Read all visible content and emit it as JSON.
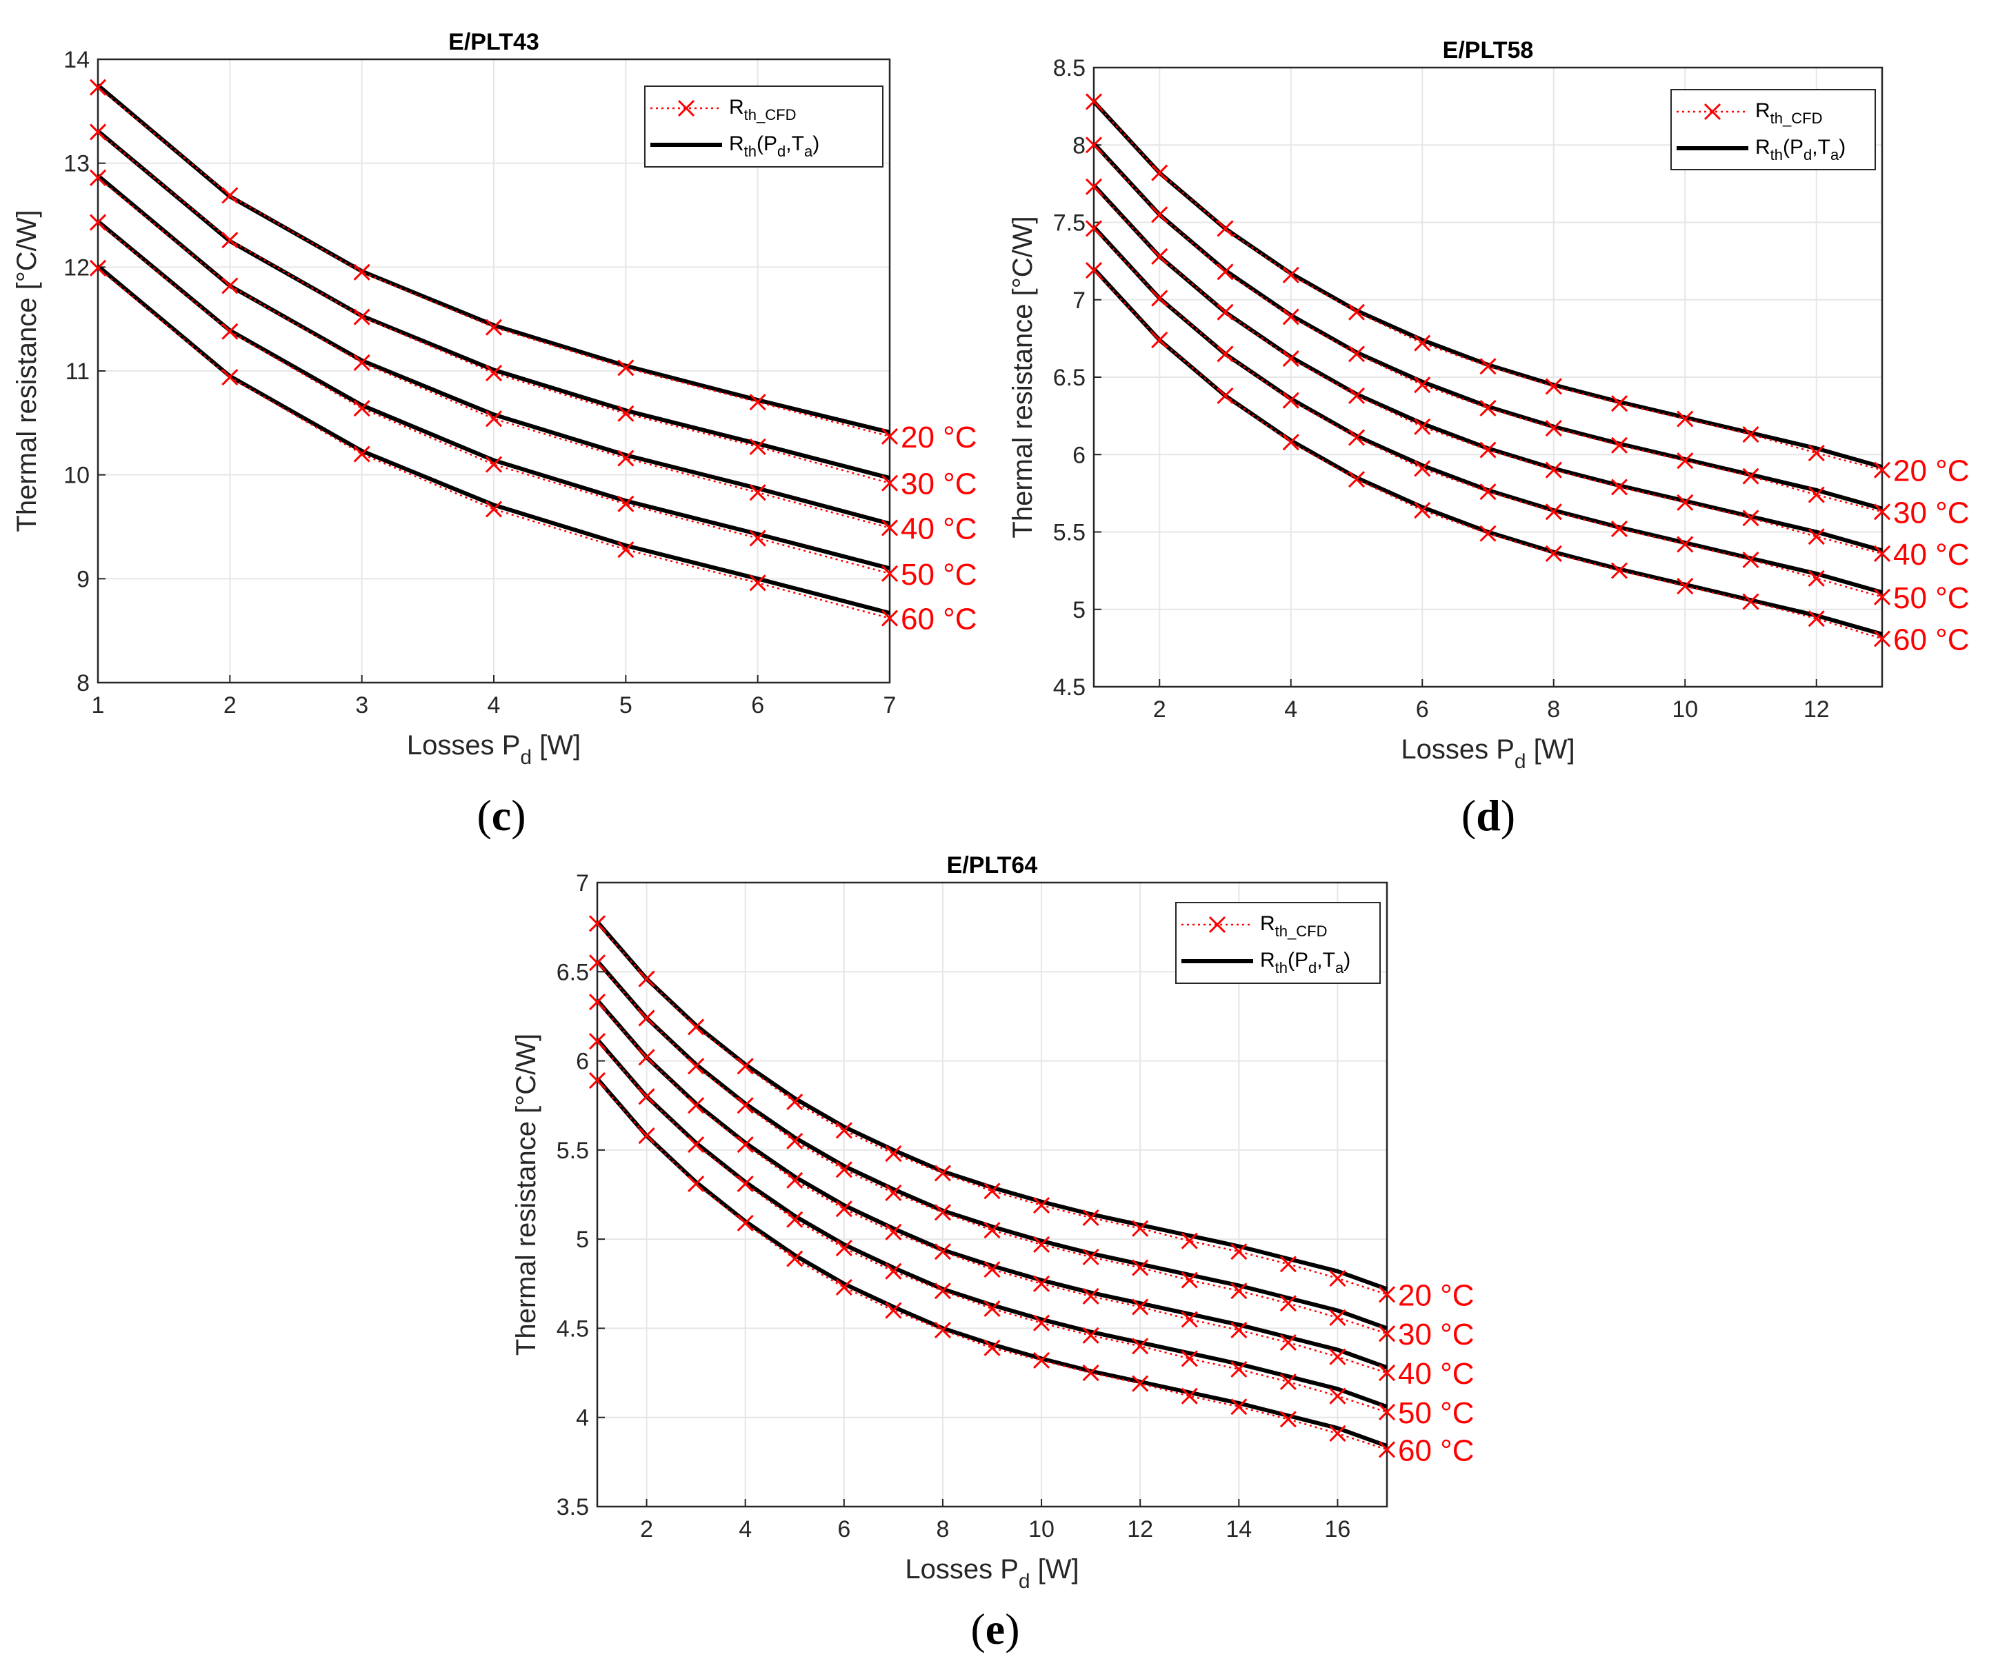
{
  "figure": {
    "legend": {
      "cfd_base": "R",
      "cfd_sub": "th_CFD",
      "fit_base": "R",
      "fit_sub": "th",
      "fit_args": [
        "(P",
        "d",
        ",T",
        "a",
        ")"
      ]
    },
    "ylabel": "Thermal resistance [°C/W]",
    "xlabel_base": "Losses P",
    "xlabel_sub": "d",
    "xlabel_unit": " [W]"
  },
  "chart_data": [
    {
      "type": "line",
      "panel": "(c)",
      "title": "E/PLT43",
      "xlim": [
        1,
        7
      ],
      "ylim": [
        8,
        14
      ],
      "xticks": [
        1,
        2,
        3,
        4,
        5,
        6,
        7
      ],
      "yticks": [
        8,
        9,
        10,
        11,
        12,
        13,
        14
      ],
      "x": [
        1,
        2,
        3,
        4,
        5,
        6,
        7
      ],
      "series": [
        {
          "name": "20 °C",
          "cfd": [
            13.73,
            12.69,
            11.95,
            11.42,
            11.03,
            10.7,
            10.37
          ],
          "fit": [
            13.75,
            12.68,
            11.96,
            11.44,
            11.05,
            10.72,
            10.41
          ]
        },
        {
          "name": "30 °C",
          "cfd": [
            13.3,
            12.26,
            11.52,
            10.98,
            10.59,
            10.27,
            9.92
          ],
          "fit": [
            13.31,
            12.25,
            11.53,
            11.01,
            10.62,
            10.3,
            9.97
          ]
        },
        {
          "name": "40 °C",
          "cfd": [
            12.86,
            11.82,
            11.08,
            10.54,
            10.16,
            9.83,
            9.49
          ],
          "fit": [
            12.88,
            11.82,
            11.1,
            10.58,
            10.19,
            9.87,
            9.53
          ]
        },
        {
          "name": "50 °C",
          "cfd": [
            12.43,
            11.38,
            10.64,
            10.1,
            9.72,
            9.39,
            9.05
          ],
          "fit": [
            12.44,
            11.39,
            10.67,
            10.14,
            9.75,
            9.43,
            9.1
          ]
        },
        {
          "name": "60 °C",
          "cfd": [
            11.99,
            10.94,
            10.2,
            9.67,
            9.28,
            8.96,
            8.62
          ],
          "fit": [
            12.01,
            10.95,
            10.23,
            9.71,
            9.32,
            9.0,
            8.67
          ]
        }
      ]
    },
    {
      "type": "line",
      "panel": "(d)",
      "title": "E/PLT58",
      "xlim": [
        1,
        13
      ],
      "ylim": [
        4.5,
        8.5
      ],
      "xticks": [
        2,
        4,
        6,
        8,
        10,
        12
      ],
      "yticks": [
        4.5,
        5,
        5.5,
        6,
        6.5,
        7,
        7.5,
        8,
        8.5
      ],
      "x": [
        1,
        2,
        3,
        4,
        5,
        6,
        7,
        8,
        9,
        10,
        11,
        12,
        13
      ],
      "series": [
        {
          "name": "20 °C",
          "cfd": [
            8.28,
            7.82,
            7.46,
            7.16,
            6.92,
            6.72,
            6.57,
            6.44,
            6.33,
            6.23,
            6.13,
            6.01,
            5.9
          ],
          "fit": [
            8.28,
            7.82,
            7.46,
            7.17,
            6.93,
            6.74,
            6.58,
            6.45,
            6.34,
            6.24,
            6.14,
            6.04,
            5.92
          ]
        },
        {
          "name": "30 °C",
          "cfd": [
            8.0,
            7.55,
            7.18,
            6.89,
            6.65,
            6.45,
            6.3,
            6.17,
            6.06,
            5.96,
            5.86,
            5.74,
            5.63
          ],
          "fit": [
            8.01,
            7.55,
            7.19,
            6.9,
            6.66,
            6.47,
            6.31,
            6.18,
            6.07,
            5.97,
            5.87,
            5.77,
            5.65
          ]
        },
        {
          "name": "40 °C",
          "cfd": [
            7.73,
            7.28,
            6.92,
            6.62,
            6.38,
            6.18,
            6.03,
            5.9,
            5.79,
            5.69,
            5.59,
            5.47,
            5.36
          ],
          "fit": [
            7.74,
            7.28,
            6.92,
            6.63,
            6.39,
            6.2,
            6.04,
            5.91,
            5.8,
            5.7,
            5.6,
            5.5,
            5.38
          ]
        },
        {
          "name": "50 °C",
          "cfd": [
            7.46,
            7.01,
            6.65,
            6.35,
            6.11,
            5.91,
            5.76,
            5.63,
            5.52,
            5.42,
            5.32,
            5.2,
            5.08
          ],
          "fit": [
            7.47,
            7.01,
            6.65,
            6.36,
            6.12,
            5.93,
            5.77,
            5.64,
            5.53,
            5.43,
            5.33,
            5.23,
            5.11
          ]
        },
        {
          "name": "60 °C",
          "cfd": [
            7.19,
            6.74,
            6.38,
            6.08,
            5.84,
            5.64,
            5.49,
            5.36,
            5.25,
            5.15,
            5.05,
            4.94,
            4.81
          ],
          "fit": [
            7.2,
            6.74,
            6.38,
            6.09,
            5.85,
            5.66,
            5.5,
            5.37,
            5.26,
            5.16,
            5.06,
            4.96,
            4.84
          ]
        }
      ]
    },
    {
      "type": "line",
      "panel": "(e)",
      "title": "E/PLT64",
      "xlim": [
        1,
        17
      ],
      "ylim": [
        3.5,
        7
      ],
      "xticks": [
        2,
        4,
        6,
        8,
        10,
        12,
        14,
        16
      ],
      "yticks": [
        3.5,
        4,
        4.5,
        5,
        5.5,
        6,
        6.5,
        7
      ],
      "x": [
        1,
        2,
        3,
        4,
        5,
        6,
        7,
        8,
        9,
        10,
        11,
        12,
        13,
        14,
        15,
        16,
        17
      ],
      "series": [
        {
          "name": "20 °C",
          "cfd": [
            6.77,
            6.46,
            6.19,
            5.97,
            5.77,
            5.61,
            5.48,
            5.37,
            5.27,
            5.19,
            5.12,
            5.06,
            4.99,
            4.93,
            4.86,
            4.78,
            4.69
          ],
          "fit": [
            6.78,
            6.46,
            6.2,
            5.98,
            5.79,
            5.63,
            5.5,
            5.38,
            5.29,
            5.21,
            5.14,
            5.08,
            5.02,
            4.96,
            4.89,
            4.82,
            4.72
          ]
        },
        {
          "name": "30 °C",
          "cfd": [
            6.55,
            6.24,
            5.97,
            5.75,
            5.55,
            5.39,
            5.26,
            5.15,
            5.05,
            4.97,
            4.9,
            4.84,
            4.77,
            4.71,
            4.64,
            4.56,
            4.47
          ],
          "fit": [
            6.56,
            6.24,
            5.98,
            5.76,
            5.57,
            5.41,
            5.28,
            5.16,
            5.07,
            4.99,
            4.92,
            4.86,
            4.8,
            4.74,
            4.67,
            4.6,
            4.5
          ]
        },
        {
          "name": "40 °C",
          "cfd": [
            6.33,
            6.02,
            5.75,
            5.53,
            5.33,
            5.17,
            5.04,
            4.93,
            4.83,
            4.75,
            4.68,
            4.62,
            4.55,
            4.49,
            4.42,
            4.34,
            4.25
          ],
          "fit": [
            6.34,
            6.02,
            5.76,
            5.54,
            5.35,
            5.19,
            5.06,
            4.94,
            4.85,
            4.77,
            4.7,
            4.64,
            4.58,
            4.52,
            4.45,
            4.38,
            4.28
          ]
        },
        {
          "name": "50 °C",
          "cfd": [
            6.11,
            5.8,
            5.53,
            5.31,
            5.11,
            4.95,
            4.82,
            4.71,
            4.61,
            4.53,
            4.46,
            4.4,
            4.33,
            4.27,
            4.2,
            4.12,
            4.03
          ],
          "fit": [
            6.12,
            5.8,
            5.54,
            5.32,
            5.13,
            4.97,
            4.84,
            4.72,
            4.63,
            4.55,
            4.48,
            4.42,
            4.36,
            4.3,
            4.23,
            4.16,
            4.06
          ]
        },
        {
          "name": "60 °C",
          "cfd": [
            5.89,
            5.58,
            5.31,
            5.09,
            4.89,
            4.73,
            4.6,
            4.49,
            4.39,
            4.32,
            4.25,
            4.19,
            4.12,
            4.06,
            3.99,
            3.91,
            3.82
          ],
          "fit": [
            5.9,
            5.58,
            5.32,
            5.1,
            4.91,
            4.75,
            4.62,
            4.5,
            4.41,
            4.33,
            4.26,
            4.2,
            4.14,
            4.08,
            4.01,
            3.94,
            3.84
          ]
        }
      ]
    }
  ]
}
